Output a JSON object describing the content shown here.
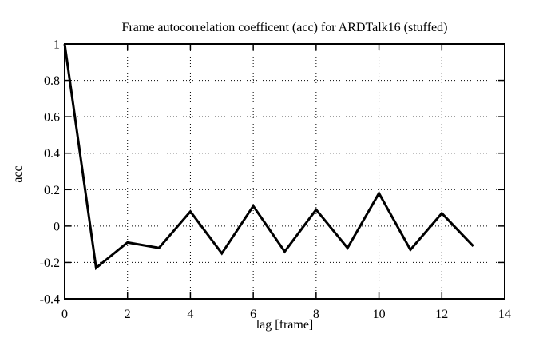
{
  "chart_data": {
    "type": "line",
    "title": "Frame autocorrelation coefficent (acc) for ARDTalk16 (stuffed)",
    "xlabel": "lag [frame]",
    "ylabel": "acc",
    "x": [
      0,
      1,
      2,
      3,
      4,
      5,
      6,
      7,
      8,
      9,
      10,
      11,
      12,
      13
    ],
    "y": [
      1,
      -0.23,
      -0.09,
      -0.12,
      0.08,
      -0.15,
      0.11,
      -0.14,
      0.09,
      -0.12,
      0.18,
      -0.13,
      0.07,
      -0.11
    ],
    "xlim": [
      0,
      14
    ],
    "ylim": [
      -0.4,
      1
    ],
    "xticks": [
      0,
      2,
      4,
      6,
      8,
      10,
      12,
      14
    ],
    "yticks": [
      -0.4,
      -0.2,
      0,
      0.2,
      0.4,
      0.6,
      0.8,
      1
    ],
    "grid": true,
    "legend": "none",
    "line_color": "#000000",
    "background_color": "#ffffff"
  }
}
